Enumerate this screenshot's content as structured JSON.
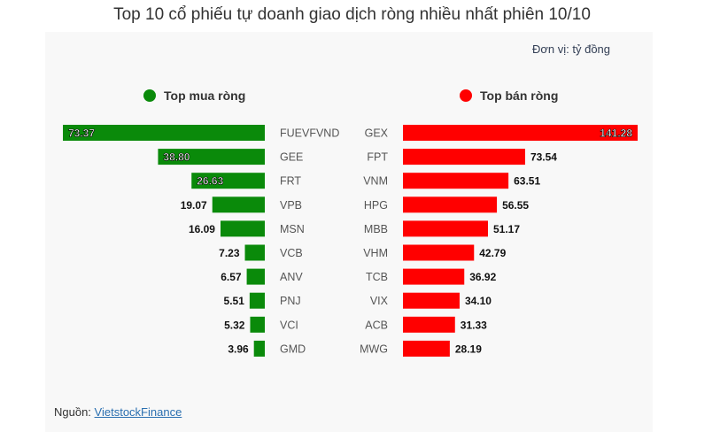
{
  "title": "Top 10 cổ phiếu tự doanh giao dịch ròng nhiều nhất phiên 10/10",
  "unit_label": "Đơn vị: tỷ đồng",
  "legend": {
    "buy": {
      "label": "Top mua ròng",
      "color": "#0a8a0a"
    },
    "sell": {
      "label": "Top bán ròng",
      "color": "#ff0000"
    }
  },
  "source": {
    "prefix": "Nguồn: ",
    "link_text": "VietstockFinance"
  },
  "chart_data": [
    {
      "type": "bar",
      "orientation": "horizontal",
      "direction": "right-to-left",
      "title": "Top mua ròng",
      "categories": [
        "FUEVFVND",
        "GEE",
        "FRT",
        "VPB",
        "MSN",
        "VCB",
        "ANV",
        "PNJ",
        "VCI",
        "GMD"
      ],
      "values": [
        73.37,
        38.8,
        26.63,
        19.07,
        16.09,
        7.23,
        6.57,
        5.51,
        5.32,
        3.96
      ],
      "labels": [
        "73.37",
        "38.80",
        "26.63",
        "19.07",
        "16.09",
        "7.23",
        "6.57",
        "5.51",
        "5.32",
        "3.96"
      ],
      "color": "#0a8a0a"
    },
    {
      "type": "bar",
      "orientation": "horizontal",
      "direction": "left-to-right",
      "title": "Top bán ròng",
      "categories": [
        "GEX",
        "FPT",
        "VNM",
        "HPG",
        "MBB",
        "VHM",
        "TCB",
        "VIX",
        "ACB",
        "MWG"
      ],
      "values": [
        141.28,
        73.54,
        63.51,
        56.55,
        51.17,
        42.79,
        36.92,
        34.1,
        31.33,
        28.19
      ],
      "labels": [
        "141.28",
        "73.54",
        "63.51",
        "56.55",
        "51.17",
        "42.79",
        "36.92",
        "34.10",
        "31.33",
        "28.19"
      ],
      "color": "#ff0000"
    }
  ]
}
